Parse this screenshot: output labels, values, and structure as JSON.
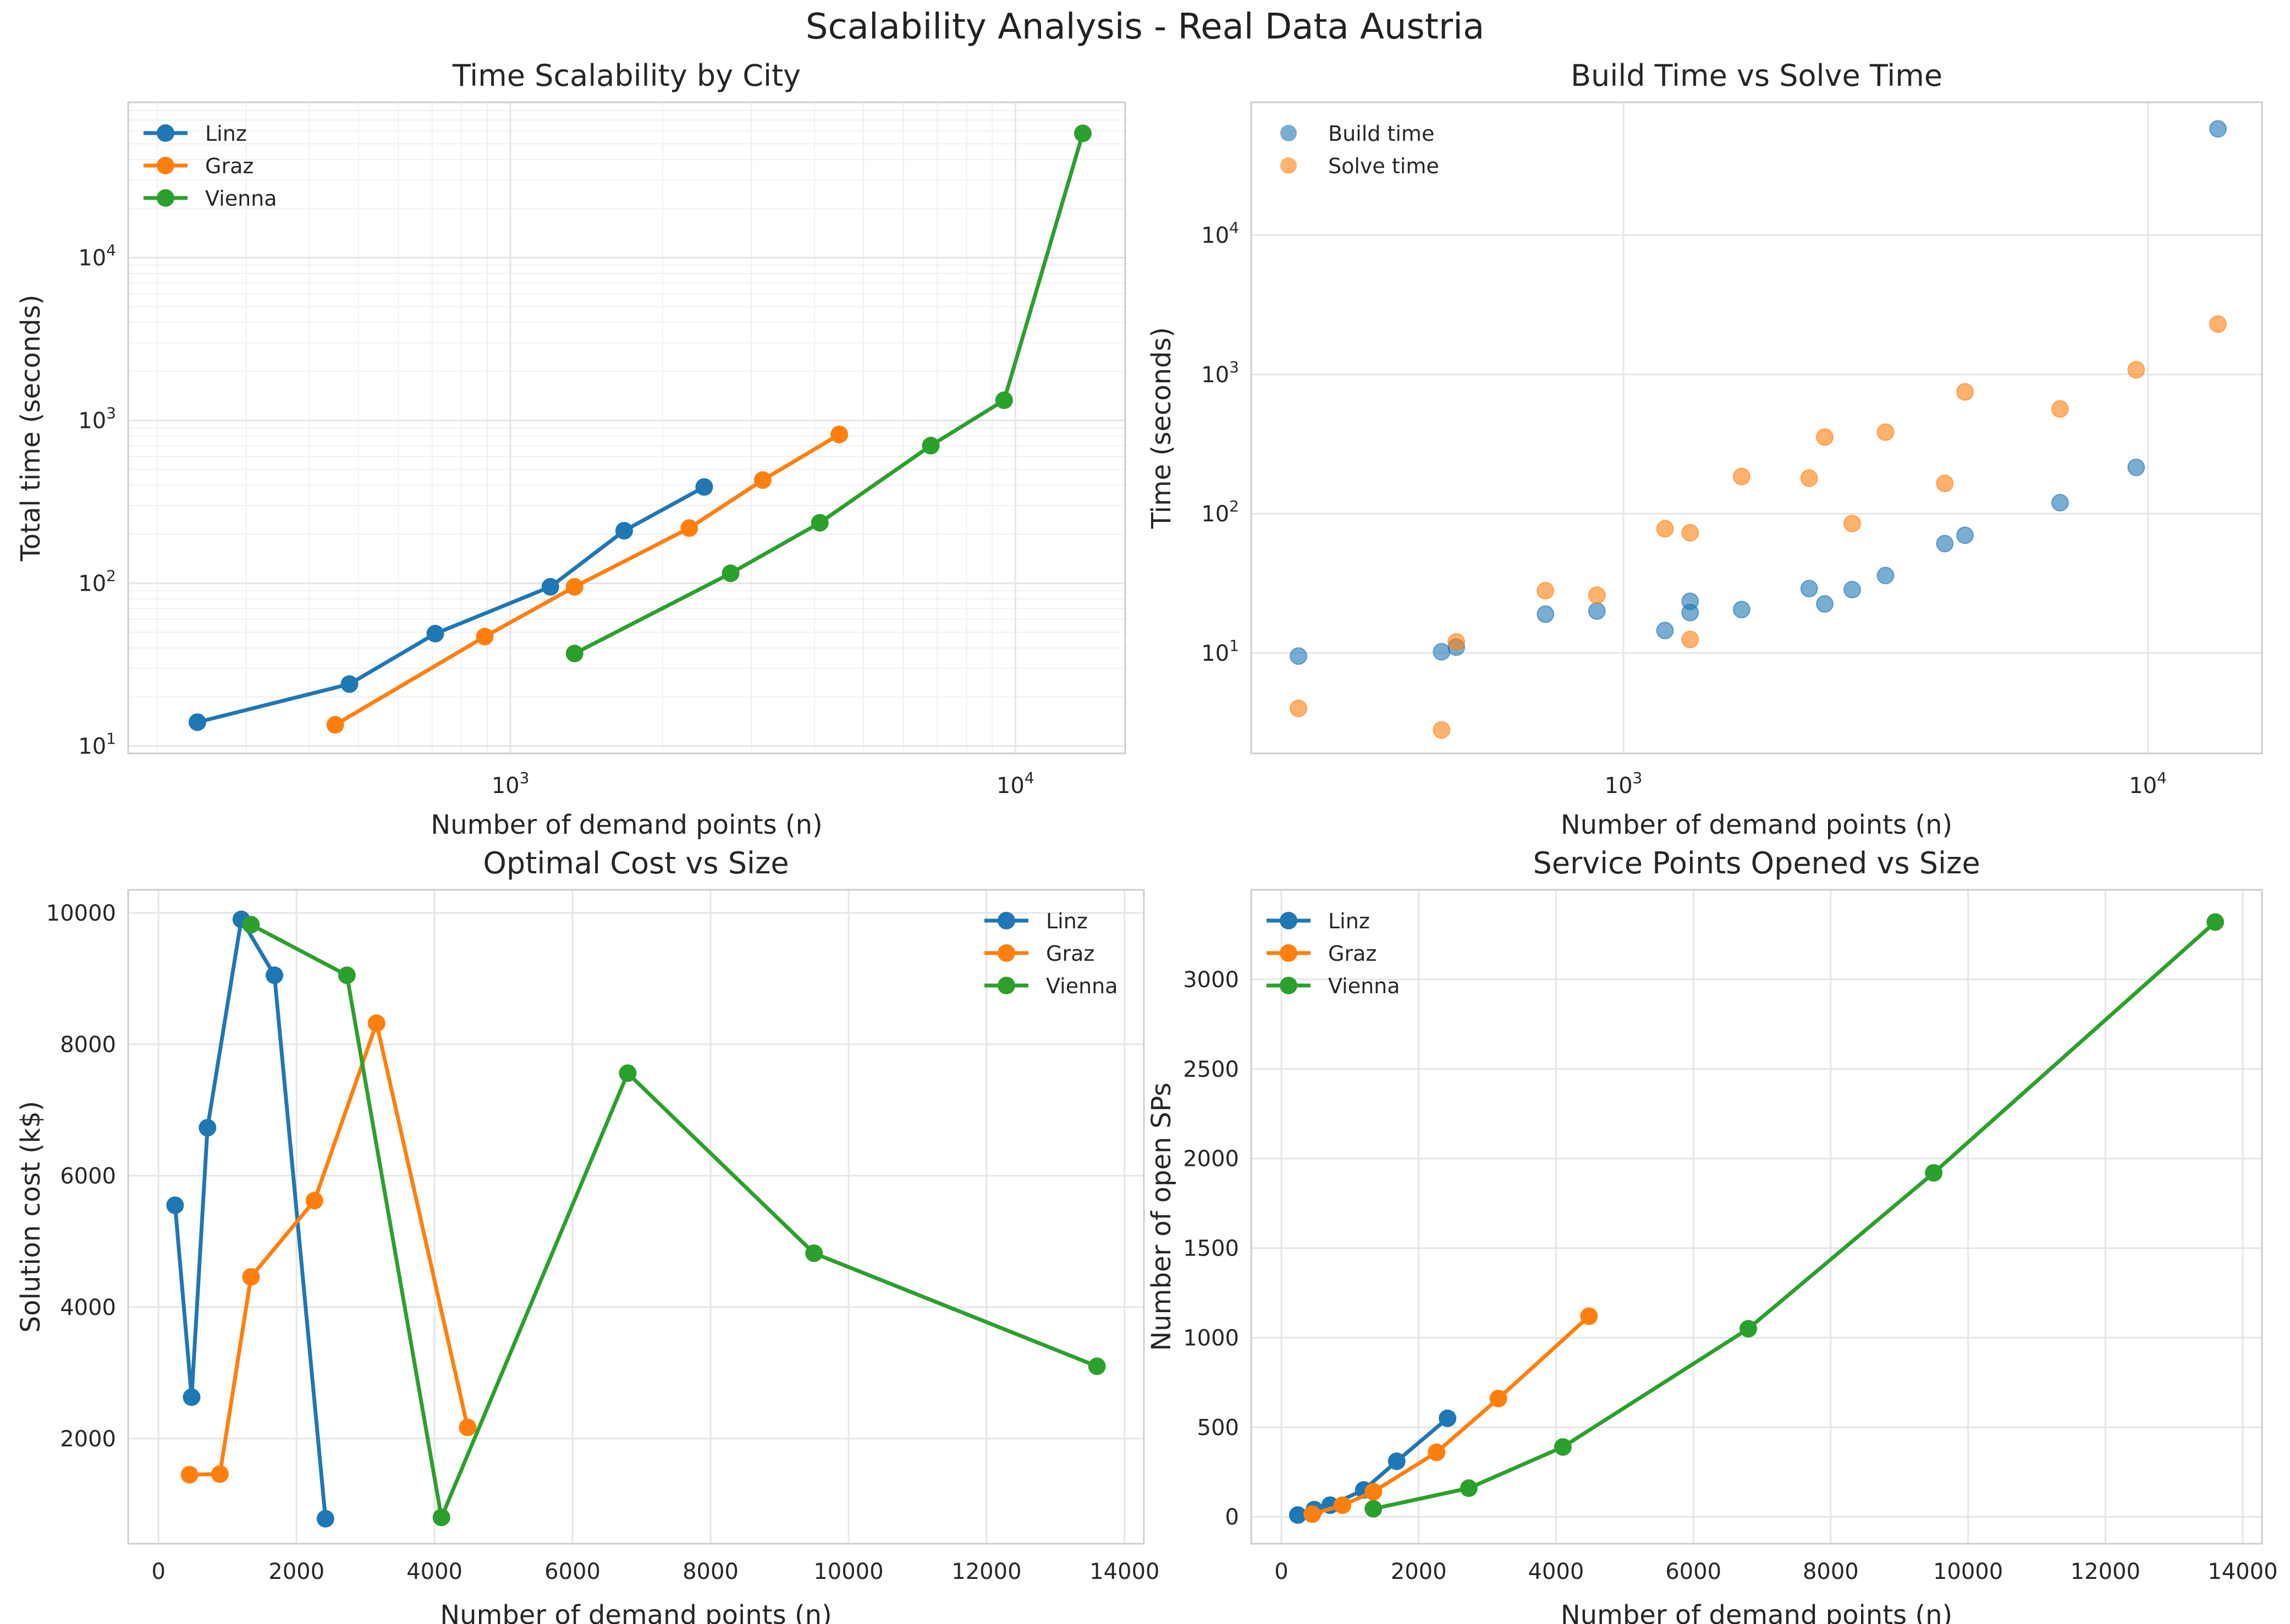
{
  "figure": {
    "title": "Scalability Analysis - Real Data Austria"
  },
  "colors": {
    "Linz": "#1f77b4",
    "Graz": "#ff7f0e",
    "Vienna": "#2ca02c",
    "grid": "#e6e6e6",
    "spine": "#cccccc"
  },
  "chart_data": [
    {
      "id": "time-scalability",
      "type": "line",
      "title": "Time Scalability by City",
      "xlabel": "Number of demand points (n)",
      "ylabel": "Total time (seconds)",
      "xscale": "log",
      "yscale": "log",
      "xlim": [
        175,
        16500
      ],
      "ylim": [
        9,
        90000
      ],
      "xticks": [
        {
          "value": 1000,
          "base": "10",
          "exp": "3"
        },
        {
          "value": 10000,
          "base": "10",
          "exp": "4"
        }
      ],
      "yticks": [
        {
          "value": 10,
          "base": "10",
          "exp": "1"
        },
        {
          "value": 100,
          "base": "10",
          "exp": "2"
        },
        {
          "value": 1000,
          "base": "10",
          "exp": "3"
        },
        {
          "value": 10000,
          "base": "10",
          "exp": "4"
        }
      ],
      "grid": "major-and-minor",
      "legend": "upper-left",
      "series": [
        {
          "name": "Linz",
          "x": [
            240,
            480,
            710,
            1200,
            1680,
            2420
          ],
          "y": [
            14,
            24,
            49,
            95,
            210,
            390
          ]
        },
        {
          "name": "Graz",
          "x": [
            450,
            890,
            1340,
            2260,
            3160,
            4480
          ],
          "y": [
            13.5,
            47,
            95,
            218,
            430,
            820
          ]
        },
        {
          "name": "Vienna",
          "x": [
            1340,
            2730,
            4100,
            6800,
            9500,
            13600
          ],
          "y": [
            37,
            115,
            235,
            700,
            1330,
            58000
          ]
        }
      ]
    },
    {
      "id": "build-vs-solve",
      "type": "scatter",
      "title": "Build Time vs Solve Time",
      "xlabel": "Number of demand points (n)",
      "ylabel": "Time (seconds)",
      "xscale": "log",
      "yscale": "log",
      "xlim": [
        195,
        16500
      ],
      "ylim": [
        1.9,
        90000
      ],
      "xticks": [
        {
          "value": 1000,
          "base": "10",
          "exp": "3"
        },
        {
          "value": 10000,
          "base": "10",
          "exp": "4"
        }
      ],
      "yticks": [
        {
          "value": 10,
          "base": "10",
          "exp": "1"
        },
        {
          "value": 100,
          "base": "10",
          "exp": "2"
        },
        {
          "value": 1000,
          "base": "10",
          "exp": "3"
        },
        {
          "value": 10000,
          "base": "10",
          "exp": "4"
        }
      ],
      "grid": "major",
      "legend": "upper-left",
      "series": [
        {
          "name": "Build time",
          "color": "#1f77b4",
          "x": [
            240,
            450,
            480,
            710,
            890,
            1200,
            1340,
            1340,
            1680,
            2260,
            2420,
            2730,
            3160,
            4100,
            4480,
            6800,
            9500,
            13600
          ],
          "y": [
            9.5,
            10.2,
            11,
            19,
            20,
            14.5,
            19.5,
            23.5,
            20.5,
            29,
            22.5,
            28.5,
            36,
            61,
            70,
            120,
            215,
            58000
          ]
        },
        {
          "name": "Solve time",
          "color": "#ff7f0e",
          "x": [
            240,
            450,
            480,
            710,
            890,
            1200,
            1340,
            1340,
            1680,
            2260,
            2420,
            2730,
            3160,
            4100,
            4480,
            6800,
            9500,
            13600
          ],
          "y": [
            4,
            2.8,
            12,
            28,
            26,
            78,
            73,
            12.5,
            185,
            180,
            355,
            85,
            385,
            165,
            750,
            565,
            1080,
            2300
          ]
        }
      ]
    },
    {
      "id": "optimal-cost",
      "type": "line",
      "title": "Optimal Cost vs Size",
      "xlabel": "Number of demand points (n)",
      "ylabel": "Solution cost (k$)",
      "xscale": "linear",
      "yscale": "linear",
      "xlim": [
        -440,
        14280
      ],
      "ylim": [
        400,
        10350
      ],
      "xticks": [
        0,
        2000,
        4000,
        6000,
        8000,
        10000,
        12000,
        14000
      ],
      "yticks": [
        2000,
        4000,
        6000,
        8000,
        10000
      ],
      "grid": "major",
      "legend": "upper-right",
      "series": [
        {
          "name": "Linz",
          "x": [
            240,
            480,
            710,
            1200,
            1680,
            2420
          ],
          "y": [
            5550,
            2630,
            6730,
            9900,
            9050,
            780
          ]
        },
        {
          "name": "Graz",
          "x": [
            450,
            890,
            1340,
            2260,
            3160,
            4480
          ],
          "y": [
            1450,
            1460,
            4460,
            5620,
            8320,
            2170
          ]
        },
        {
          "name": "Vienna",
          "x": [
            1340,
            2730,
            4100,
            6800,
            9500,
            13600
          ],
          "y": [
            9820,
            9050,
            800,
            7560,
            4820,
            3100
          ]
        }
      ]
    },
    {
      "id": "service-points",
      "type": "line",
      "title": "Service Points Opened vs Size",
      "xlabel": "Number of demand points (n)",
      "ylabel": "Number of open SPs",
      "xscale": "linear",
      "yscale": "linear",
      "xlim": [
        -440,
        14280
      ],
      "ylim": [
        -150,
        3500
      ],
      "xticks": [
        0,
        2000,
        4000,
        6000,
        8000,
        10000,
        12000,
        14000
      ],
      "yticks": [
        0,
        500,
        1000,
        1500,
        2000,
        2500,
        3000
      ],
      "grid": "major",
      "legend": "upper-left",
      "series": [
        {
          "name": "Linz",
          "x": [
            240,
            480,
            710,
            1200,
            1680,
            2420
          ],
          "y": [
            10,
            40,
            65,
            150,
            310,
            550
          ]
        },
        {
          "name": "Graz",
          "x": [
            450,
            890,
            1340,
            2260,
            3160,
            4480
          ],
          "y": [
            15,
            65,
            140,
            360,
            660,
            1120
          ]
        },
        {
          "name": "Vienna",
          "x": [
            1340,
            2730,
            4100,
            6800,
            9500,
            13600
          ],
          "y": [
            45,
            160,
            390,
            1050,
            1920,
            3320
          ]
        }
      ]
    }
  ]
}
